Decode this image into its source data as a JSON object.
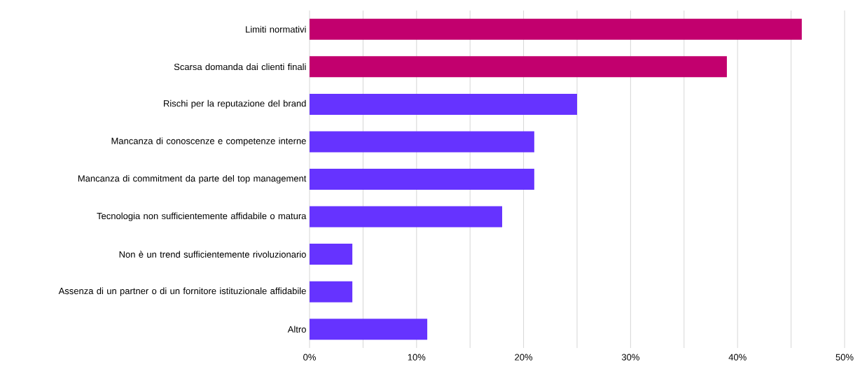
{
  "chart_data": {
    "type": "bar",
    "orientation": "horizontal",
    "categories": [
      "Limiti normativi",
      "Scarsa domanda dai clienti finali",
      "Rischi per la reputazione del brand",
      "Mancanza di conoscenze e competenze interne",
      "Mancanza di commitment da parte del top management",
      "Tecnologia non sufficientemente affidabile o matura",
      "Non è un trend sufficientemente rivoluzionario",
      "Assenza di un partner o di un fornitore istituzionale affidabile",
      "Altro"
    ],
    "values": [
      46,
      39,
      25,
      21,
      21,
      18,
      4,
      4,
      11
    ],
    "colors": [
      "#c2006e",
      "#c2006e",
      "#6633ff",
      "#6633ff",
      "#6633ff",
      "#6633ff",
      "#6633ff",
      "#6633ff",
      "#6633ff"
    ],
    "xlim": [
      0,
      50
    ],
    "xticks": [
      {
        "value": 0,
        "label": "0%"
      },
      {
        "value": 5,
        "label": null
      },
      {
        "value": 10,
        "label": "10%"
      },
      {
        "value": 15,
        "label": null
      },
      {
        "value": 20,
        "label": "20%"
      },
      {
        "value": 25,
        "label": null
      },
      {
        "value": 30,
        "label": "30%"
      },
      {
        "value": 35,
        "label": null
      },
      {
        "value": 40,
        "label": "40%"
      },
      {
        "value": 45,
        "label": null
      },
      {
        "value": 50,
        "label": "50%"
      }
    ],
    "grid": "x"
  }
}
